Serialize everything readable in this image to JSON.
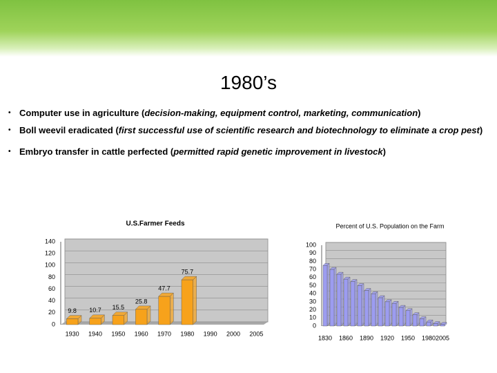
{
  "title": "1980’s",
  "bullets": [
    {
      "lead": "Computer use in agriculture (",
      "detail": "decision-making, equipment control, marketing, communication",
      "tail": ")"
    },
    {
      "lead": "Boll weevil eradicated (",
      "detail": "first successful use of scientific research and biotechnology to eliminate a crop pest",
      "tail": ")"
    },
    {
      "lead": "Embryo transfer in cattle perfected (",
      "detail": "permitted rapid genetic improvement in livestock",
      "tail": ")"
    }
  ],
  "chart_data": [
    {
      "type": "bar",
      "title": "U.S.Farmer Feeds",
      "color": "#f7a21b",
      "categories": [
        "1930",
        "1940",
        "1950",
        "1960",
        "1970",
        "1980",
        "1990",
        "2000",
        "2005"
      ],
      "values": [
        9.8,
        10.7,
        15.5,
        25.8,
        47.7,
        75.7,
        null,
        null,
        null
      ],
      "ylim": [
        0,
        140
      ],
      "yticks": [
        0,
        20,
        40,
        60,
        80,
        100,
        120,
        140
      ],
      "grid": true
    },
    {
      "type": "bar",
      "title": "Percent of U.S. Population on the Farm",
      "color": "#9c9cf0",
      "categories": [
        "1830",
        null,
        null,
        "1860",
        null,
        null,
        "1890",
        null,
        null,
        "1920",
        null,
        null,
        "1950",
        null,
        null,
        "1980",
        null,
        "2005"
      ],
      "values": [
        75,
        70,
        64,
        58,
        55,
        50,
        44,
        40,
        35,
        30,
        28,
        23,
        19,
        14,
        9,
        5,
        3,
        2
      ],
      "ylim": [
        0,
        100
      ],
      "yticks": [
        0,
        10,
        20,
        30,
        40,
        50,
        60,
        70,
        80,
        90,
        100
      ],
      "grid": true
    }
  ]
}
